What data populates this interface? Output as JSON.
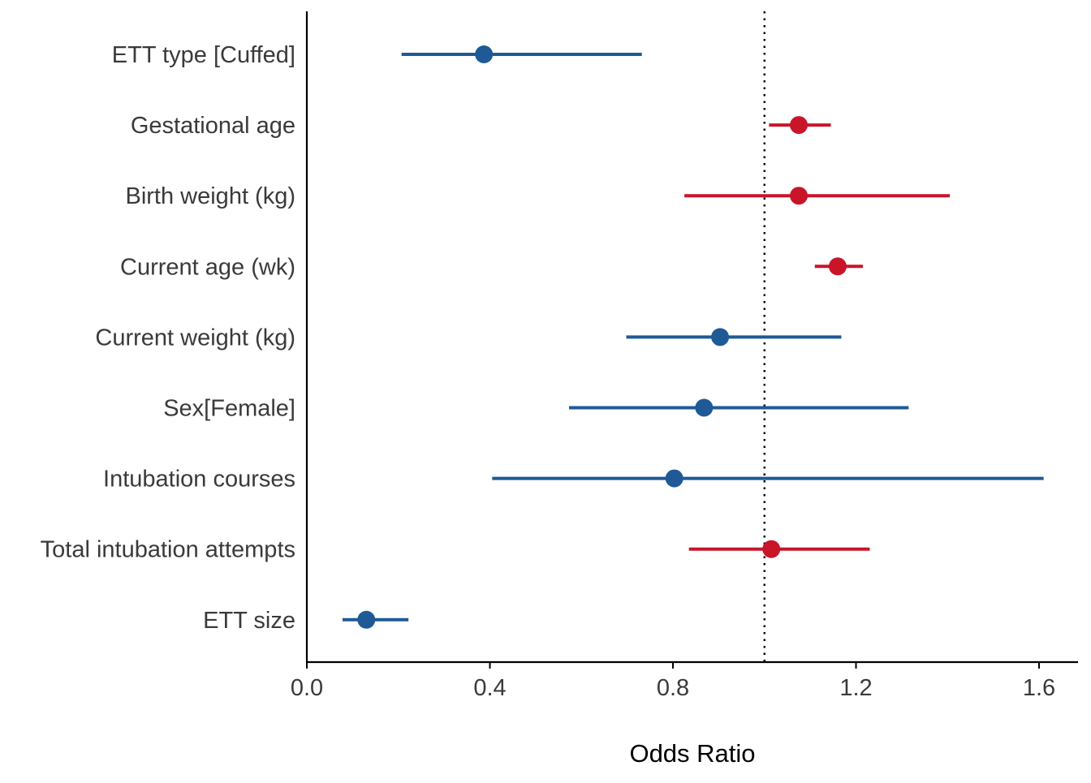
{
  "chart_data": {
    "type": "scatter",
    "subtype": "forest-plot",
    "title": "",
    "xlabel": "Odds Ratio",
    "ylabel": "",
    "xlim": [
      0.0,
      1.69
    ],
    "xticks": [
      0.0,
      0.4,
      0.8,
      1.2,
      1.6
    ],
    "xtick_labels": [
      "0.0",
      "0.4",
      "0.8",
      "1.2",
      "1.6"
    ],
    "reference_line": 1.0,
    "reference_line_style": "dotted",
    "grid": false,
    "legend": "none",
    "colors": {
      "below_one": "#1f5a96",
      "above_one": "#c8152a",
      "axis": "#000000",
      "text": "#3a3a3a"
    },
    "rows": [
      {
        "label": "ETT type [Cuffed]",
        "or": 0.387,
        "lower": 0.207,
        "upper": 0.732,
        "color_key": "below_one"
      },
      {
        "label": "Gestational age",
        "or": 1.075,
        "lower": 1.01,
        "upper": 1.145,
        "color_key": "above_one"
      },
      {
        "label": "Birth weight (kg)",
        "or": 1.075,
        "lower": 0.825,
        "upper": 1.405,
        "color_key": "above_one"
      },
      {
        "label": "Current age (wk)",
        "or": 1.16,
        "lower": 1.11,
        "upper": 1.215,
        "color_key": "above_one"
      },
      {
        "label": "Current weight (kg)",
        "or": 0.903,
        "lower": 0.698,
        "upper": 1.168,
        "color_key": "below_one"
      },
      {
        "label": "Sex[Female]",
        "or": 0.868,
        "lower": 0.573,
        "upper": 1.315,
        "color_key": "below_one"
      },
      {
        "label": "Intubation courses",
        "or": 0.803,
        "lower": 0.405,
        "upper": 1.61,
        "color_key": "below_one"
      },
      {
        "label": "Total intubation attempts",
        "or": 1.015,
        "lower": 0.835,
        "upper": 1.23,
        "color_key": "above_one"
      },
      {
        "label": "ETT size",
        "or": 0.13,
        "lower": 0.078,
        "upper": 0.222,
        "color_key": "below_one"
      }
    ]
  }
}
